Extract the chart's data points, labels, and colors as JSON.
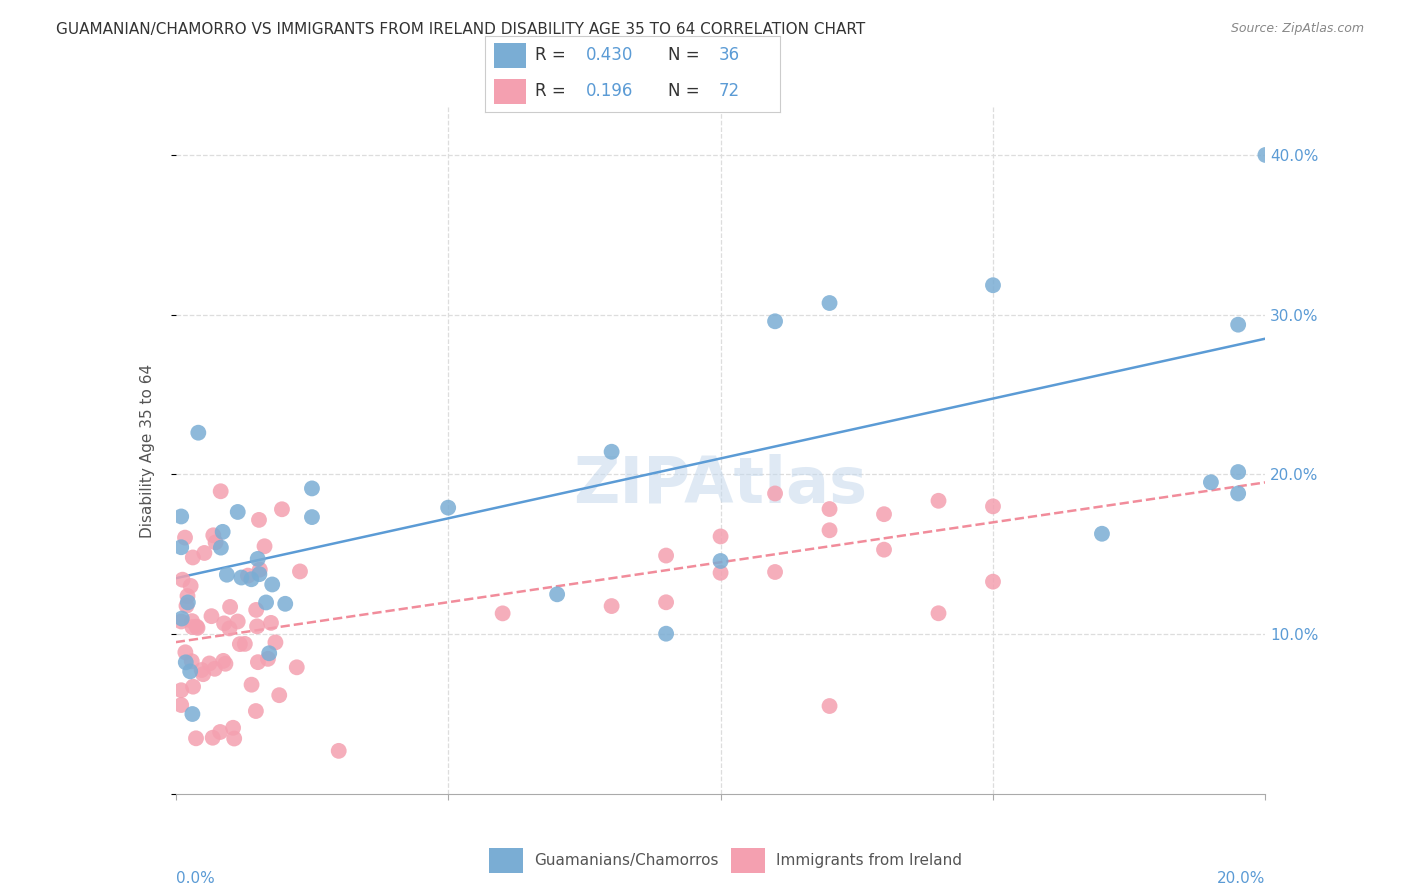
{
  "title": "GUAMANIAN/CHAMORRO VS IMMIGRANTS FROM IRELAND DISABILITY AGE 35 TO 64 CORRELATION CHART",
  "source": "Source: ZipAtlas.com",
  "ylabel": "Disability Age 35 to 64",
  "legend_blue_R": "0.430",
  "legend_blue_N": "36",
  "legend_pink_R": "0.196",
  "legend_pink_N": "72",
  "legend_label_blue": "Guamanians/Chamorros",
  "legend_label_pink": "Immigrants from Ireland",
  "blue_color": "#7aadd4",
  "pink_color": "#f4a0b0",
  "blue_line_color": "#5b9bd5",
  "pink_line_color": "#f08090",
  "xlim": [
    0.0,
    0.2
  ],
  "ylim": [
    0.0,
    0.43
  ],
  "background_color": "#ffffff",
  "grid_color": "#dddddd",
  "text_color": "#5b9bd5",
  "title_color": "#333333",
  "watermark": "ZIPAtlas"
}
